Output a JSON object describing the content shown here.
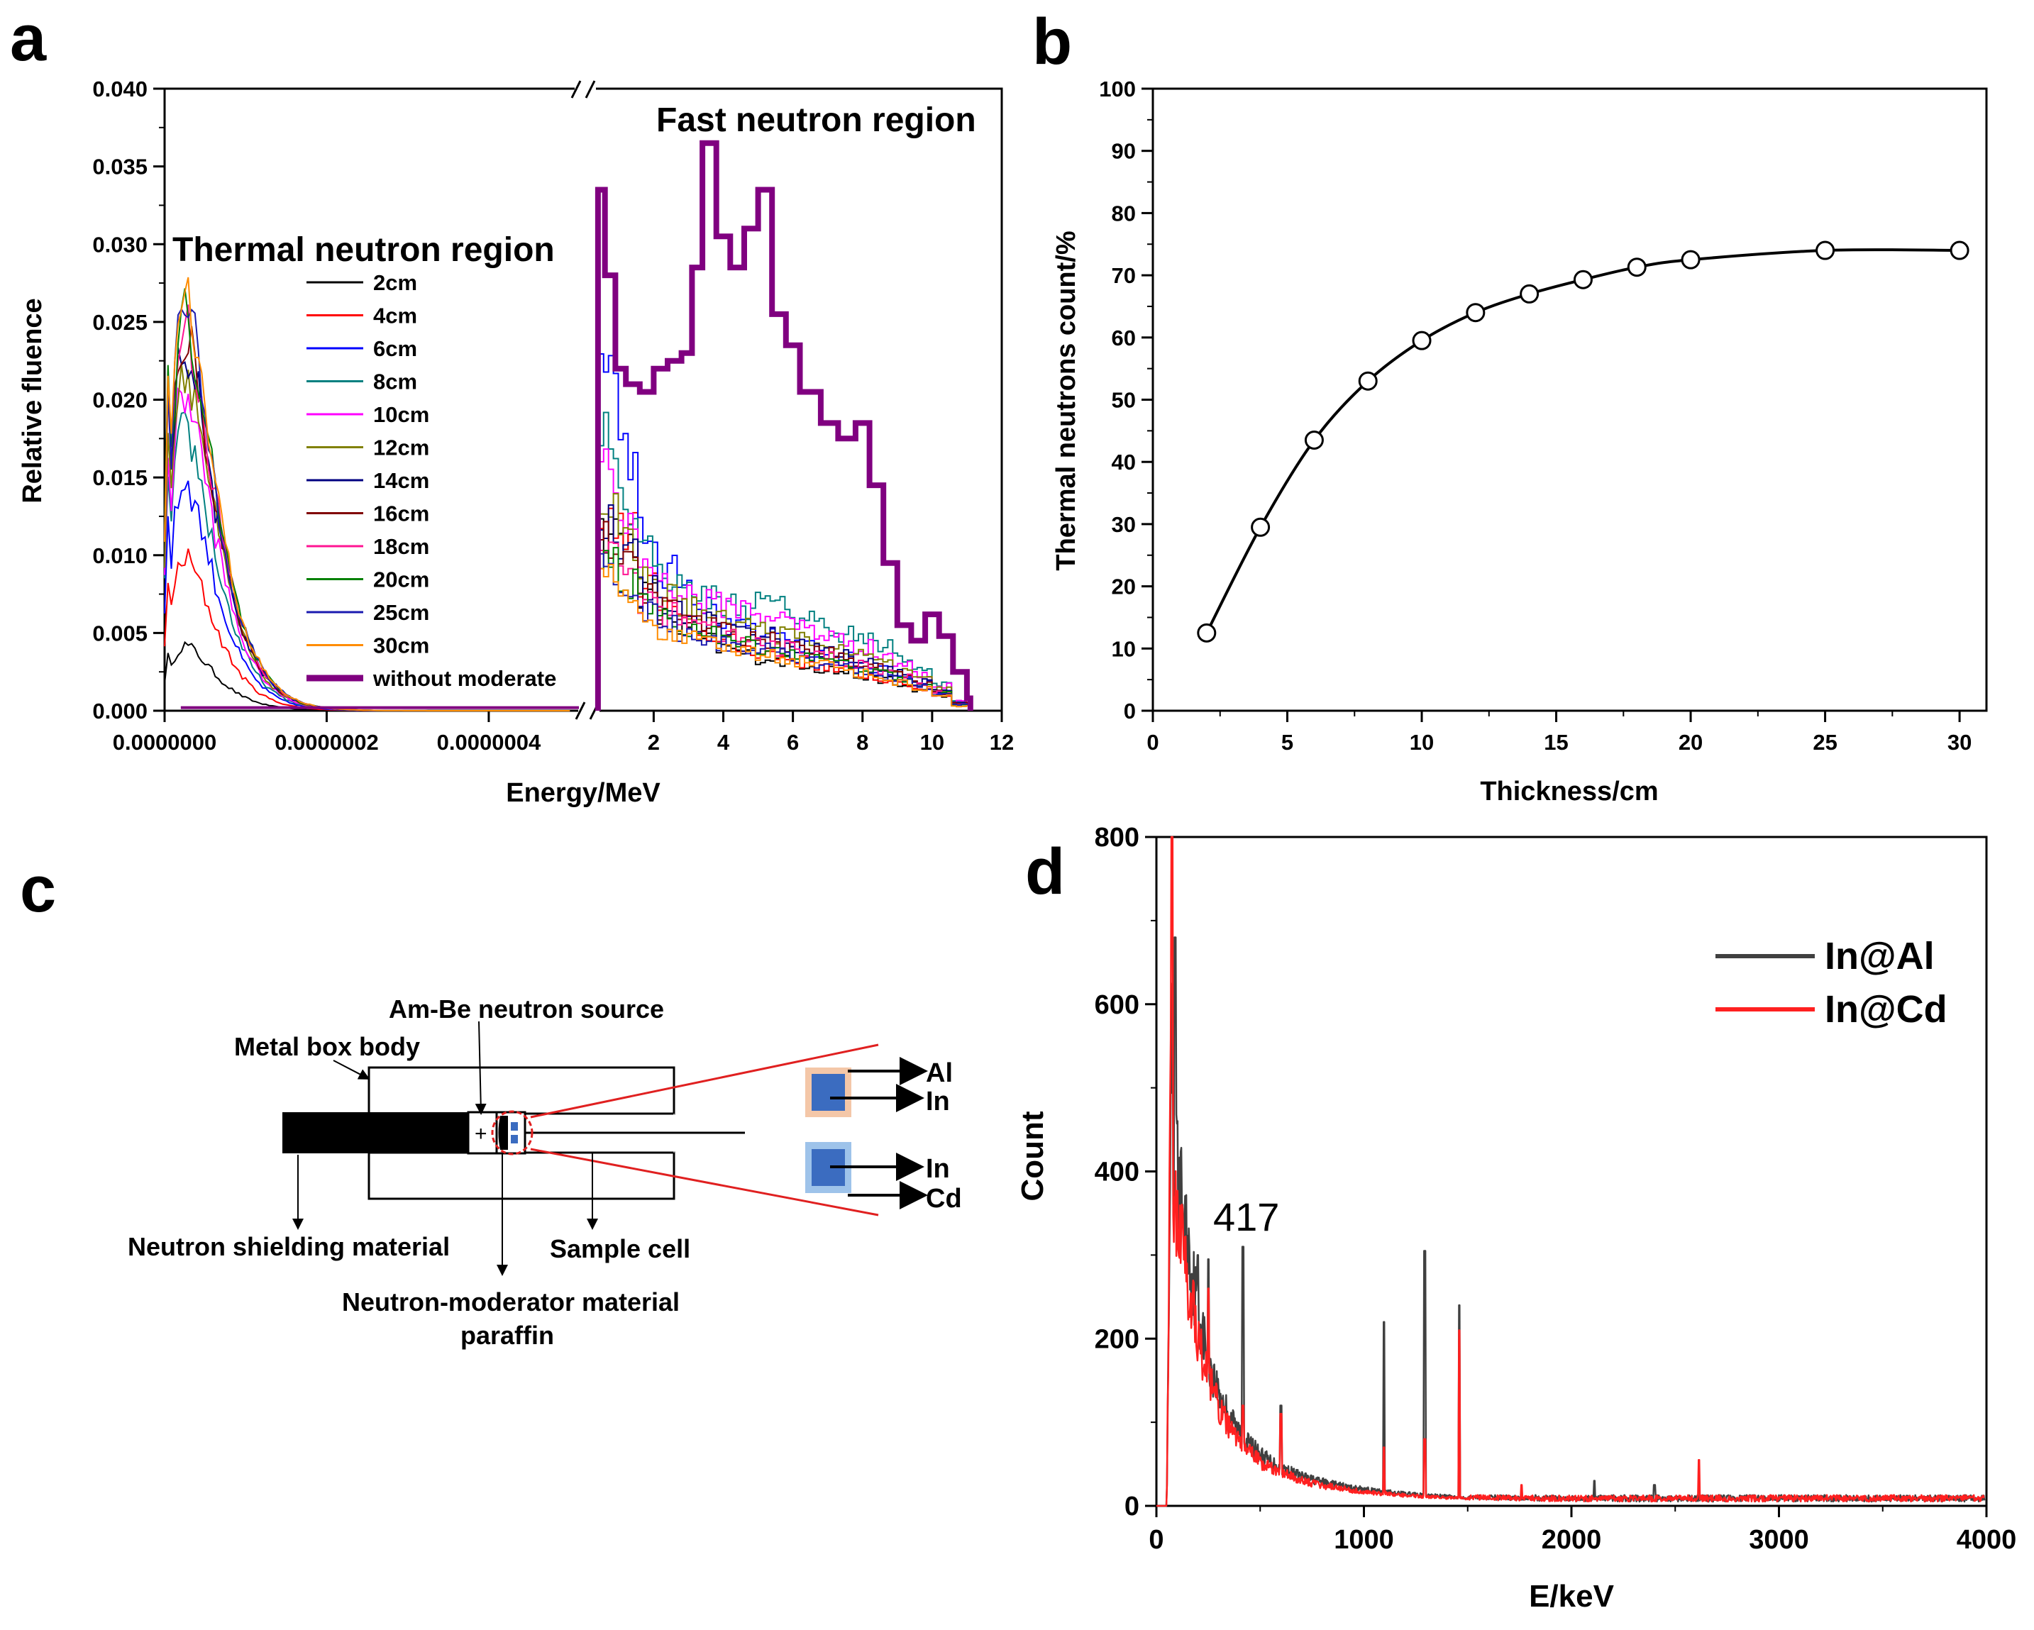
{
  "panels": {
    "a": "a",
    "b": "b",
    "c": "c",
    "d": "d"
  },
  "colors": {
    "series": [
      "#000000",
      "#ff0000",
      "#0000ff",
      "#008080",
      "#ff00ff",
      "#808000",
      "#000080",
      "#800000",
      "#ff1493",
      "#008000",
      "#1a1ab0",
      "#ff8c00"
    ],
    "moderate": "#800080",
    "in_al": "#404040",
    "in_cd": "#ff2020",
    "box_al": "#f4c7a8",
    "box_cd": "#9ec3ea",
    "box_in": "#3b6cc0"
  },
  "chart_data": [
    {
      "id": "a",
      "type": "line",
      "xlabel": "Energy/MeV",
      "ylabel": "Relative fluence",
      "ylim": [
        0,
        0.04
      ],
      "yticks": [
        "0.000",
        "0.005",
        "0.010",
        "0.015",
        "0.020",
        "0.025",
        "0.030",
        "0.035",
        "0.040"
      ],
      "xticks_thermal": [
        "0.0000000",
        "0.0000002",
        "0.0000004"
      ],
      "xticks_fast": [
        "2",
        "4",
        "6",
        "8",
        "10",
        "12"
      ],
      "thermal_xlim": [
        0,
        5.2e-07
      ],
      "fast_xlim": [
        0.3,
        12
      ],
      "annotations": {
        "thermal": "Thermal neutron region",
        "fast": "Fast neutron region"
      },
      "series": [
        {
          "name": "2cm",
          "thermal_peak": 0.0042,
          "fast": [
            0.0115,
            0.0108,
            0.0075,
            0.006,
            0.0052,
            0.0045,
            0.004,
            0.0037,
            0.0034,
            0.0032,
            0.003,
            0.0027,
            0.0025,
            0.0022,
            0.002,
            0.0016,
            0.0013,
            0.001,
            0.0004
          ]
        },
        {
          "name": "4cm",
          "thermal_peak": 0.0098,
          "fast": [
            0.0122,
            0.0115,
            0.0082,
            0.0066,
            0.0056,
            0.0049,
            0.0044,
            0.004,
            0.0037,
            0.0034,
            0.0031,
            0.0029,
            0.0026,
            0.0023,
            0.002,
            0.0017,
            0.0014,
            0.001,
            0.0004
          ]
        },
        {
          "name": "6cm",
          "thermal_peak": 0.0147,
          "fast": [
            0.0228,
            0.016,
            0.0115,
            0.009,
            0.0076,
            0.0066,
            0.0059,
            0.0053,
            0.0049,
            0.0045,
            0.0041,
            0.0037,
            0.0034,
            0.003,
            0.0026,
            0.0021,
            0.0017,
            0.0012,
            0.0005
          ]
        },
        {
          "name": "8cm",
          "thermal_peak": 0.018,
          "fast": [
            0.0178,
            0.0135,
            0.0104,
            0.0087,
            0.0079,
            0.0073,
            0.0069,
            0.0067,
            0.0069,
            0.0066,
            0.006,
            0.0055,
            0.005,
            0.0046,
            0.0041,
            0.0034,
            0.0026,
            0.0018,
            0.0006
          ]
        },
        {
          "name": "10cm",
          "thermal_peak": 0.0205,
          "fast": [
            0.015,
            0.012,
            0.0095,
            0.0082,
            0.0075,
            0.007,
            0.0068,
            0.0066,
            0.0062,
            0.0058,
            0.0054,
            0.0049,
            0.0045,
            0.0041,
            0.0036,
            0.003,
            0.0023,
            0.0016,
            0.0006
          ]
        },
        {
          "name": "12cm",
          "thermal_peak": 0.0222,
          "fast": [
            0.0128,
            0.0105,
            0.0085,
            0.0074,
            0.0067,
            0.0062,
            0.0058,
            0.0055,
            0.0052,
            0.0049,
            0.0046,
            0.0042,
            0.0039,
            0.0035,
            0.0031,
            0.0026,
            0.002,
            0.0014,
            0.0005
          ]
        },
        {
          "name": "14cm",
          "thermal_peak": 0.0235,
          "fast": [
            0.0118,
            0.0098,
            0.008,
            0.007,
            0.0063,
            0.0058,
            0.0054,
            0.0051,
            0.0048,
            0.0045,
            0.0042,
            0.0039,
            0.0036,
            0.0032,
            0.0028,
            0.0024,
            0.0019,
            0.0013,
            0.0005
          ]
        },
        {
          "name": "16cm",
          "thermal_peak": 0.0242,
          "fast": [
            0.011,
            0.0092,
            0.0075,
            0.0066,
            0.006,
            0.0055,
            0.0051,
            0.0048,
            0.0045,
            0.0043,
            0.004,
            0.0037,
            0.0034,
            0.0031,
            0.0027,
            0.0023,
            0.0018,
            0.0012,
            0.0005
          ]
        },
        {
          "name": "18cm",
          "thermal_peak": 0.0248,
          "fast": [
            0.0104,
            0.0087,
            0.0071,
            0.0062,
            0.0056,
            0.0052,
            0.0048,
            0.0045,
            0.0043,
            0.004,
            0.0037,
            0.0035,
            0.0032,
            0.0029,
            0.0025,
            0.0021,
            0.0017,
            0.0012,
            0.0004
          ]
        },
        {
          "name": "20cm",
          "thermal_peak": 0.0252,
          "fast": [
            0.0098,
            0.0082,
            0.0067,
            0.0059,
            0.0053,
            0.0049,
            0.0045,
            0.0043,
            0.0041,
            0.0038,
            0.0036,
            0.0033,
            0.003,
            0.0027,
            0.0024,
            0.002,
            0.0016,
            0.0011,
            0.0004
          ]
        },
        {
          "name": "25cm",
          "thermal_peak": 0.0258,
          "fast": [
            0.0092,
            0.0078,
            0.0064,
            0.0056,
            0.005,
            0.0046,
            0.0043,
            0.0041,
            0.0039,
            0.0036,
            0.0034,
            0.0031,
            0.0028,
            0.0026,
            0.0022,
            0.0019,
            0.0015,
            0.001,
            0.0004
          ]
        },
        {
          "name": "30cm",
          "thermal_peak": 0.0262,
          "fast": [
            0.0085,
            0.0072,
            0.0058,
            0.0051,
            0.0046,
            0.0043,
            0.004,
            0.0038,
            0.0036,
            0.0034,
            0.0032,
            0.003,
            0.0027,
            0.0024,
            0.0021,
            0.0018,
            0.0014,
            0.001,
            0.0003
          ]
        }
      ],
      "moderate": {
        "name": "without moderate",
        "fast_x": [
          0.4,
          0.6,
          0.9,
          1.2,
          1.6,
          2.0,
          2.4,
          2.8,
          3.1,
          3.4,
          3.8,
          4.2,
          4.6,
          5.0,
          5.4,
          5.8,
          6.2,
          6.8,
          7.3,
          7.8,
          8.2,
          8.6,
          9.0,
          9.4,
          9.8,
          10.2,
          10.6,
          11.0
        ],
        "fast_y": [
          0.0335,
          0.028,
          0.022,
          0.021,
          0.0205,
          0.022,
          0.0225,
          0.023,
          0.0285,
          0.0365,
          0.0305,
          0.0285,
          0.031,
          0.0335,
          0.0255,
          0.0235,
          0.0205,
          0.0185,
          0.0175,
          0.0185,
          0.0145,
          0.0095,
          0.0055,
          0.0045,
          0.0062,
          0.0048,
          0.0025,
          0.0008
        ]
      }
    },
    {
      "id": "b",
      "type": "line",
      "xlabel": "Thickness/cm",
      "ylabel": "Thermal neutrons count/%",
      "xlim": [
        0,
        31
      ],
      "ylim": [
        0,
        100
      ],
      "xticks": [
        0,
        5,
        10,
        15,
        20,
        25,
        30
      ],
      "yticks": [
        0,
        10,
        20,
        30,
        40,
        50,
        60,
        70,
        80,
        90,
        100
      ],
      "x": [
        2,
        4,
        6,
        8,
        10,
        12,
        14,
        16,
        18,
        20,
        25,
        30
      ],
      "y": [
        12.5,
        29.5,
        43.5,
        53,
        59.5,
        64,
        67,
        69.3,
        71.3,
        72.5,
        74,
        74
      ]
    },
    {
      "id": "d",
      "type": "line",
      "xlabel": "E/keV",
      "ylabel": "Count",
      "xlim": [
        0,
        4000
      ],
      "ylim": [
        0,
        800
      ],
      "xticks": [
        0,
        1000,
        2000,
        3000,
        4000
      ],
      "yticks": [
        0,
        200,
        400,
        600,
        800
      ],
      "annotation": "417",
      "series": [
        {
          "name": "In@Al",
          "peaks": [
            [
              90,
              680
            ],
            [
              200,
              300
            ],
            [
              250,
              295
            ],
            [
              417,
              310
            ],
            [
              600,
              120
            ],
            [
              1097,
              220
            ],
            [
              1293,
              305
            ],
            [
              1460,
              240
            ],
            [
              2110,
              30
            ],
            [
              2400,
              25
            ]
          ],
          "continuum": 0.75
        },
        {
          "name": "In@Cd",
          "peaks": [
            [
              75,
              800
            ],
            [
              250,
              260
            ],
            [
              417,
              120
            ],
            [
              600,
              110
            ],
            [
              1097,
              70
            ],
            [
              1293,
              80
            ],
            [
              1460,
              210
            ],
            [
              1760,
              25
            ],
            [
              2614,
              55
            ]
          ],
          "continuum": 0.65
        }
      ]
    }
  ],
  "diagram": {
    "labels": {
      "source": "Am-Be neutron source",
      "box": "Metal box body",
      "shield": "Neutron shielding material",
      "sample": "Sample cell",
      "moderator1": "Neutron-moderator material",
      "moderator2": "paraffin",
      "al": "Al",
      "in1": "In",
      "in2": "In",
      "cd": "Cd",
      "plus": "+"
    }
  }
}
